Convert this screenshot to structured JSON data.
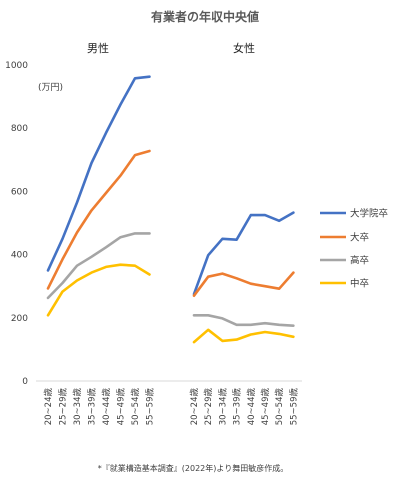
{
  "chart_data": {
    "type": "line",
    "title": "有業者の年収中央値",
    "unit_label": "(万円)",
    "ylim": [
      0,
      1000
    ],
    "yticks": [
      0,
      200,
      400,
      600,
      800,
      1000
    ],
    "categories": [
      "20~24歳",
      "25~29歳",
      "30~34歳",
      "35~39歳",
      "40~44歳",
      "45~49歳",
      "50~54歳",
      "55~59歳"
    ],
    "panels": [
      {
        "title": "男性",
        "series": [
          {
            "name": "大学院卒",
            "values": [
              350,
              450,
              565,
              690,
              785,
              875,
              958,
              963
            ]
          },
          {
            "name": "大卒",
            "values": [
              293,
              385,
              470,
              540,
              595,
              650,
              715,
              728
            ]
          },
          {
            "name": "高卒",
            "values": [
              263,
              310,
              365,
              393,
              423,
              455,
              467,
              467
            ]
          },
          {
            "name": "中卒",
            "values": [
              208,
              283,
              318,
              343,
              361,
              368,
              365,
              337
            ]
          }
        ]
      },
      {
        "title": "女性",
        "series": [
          {
            "name": "大学院卒",
            "values": [
              275,
              398,
              450,
              447,
              525,
              525,
              507,
              533
            ]
          },
          {
            "name": "大卒",
            "values": [
              270,
              330,
              340,
              325,
              308,
              300,
              292,
              343
            ]
          },
          {
            "name": "高卒",
            "values": [
              208,
              208,
              198,
              178,
              178,
              183,
              178,
              175
            ]
          },
          {
            "name": "中卒",
            "values": [
              123,
              162,
              127,
              131,
              147,
              155,
              149,
              140
            ]
          }
        ]
      }
    ],
    "colors": [
      "#4472c4",
      "#ed7d31",
      "#a5a5a5",
      "#ffc000"
    ],
    "legend": [
      "大学院卒",
      "大卒",
      "高卒",
      "中卒"
    ],
    "legend_position": "right",
    "grid": false
  },
  "footnote": "*『就業構造基本調査』(2022年)より舞田敏彦作成。"
}
